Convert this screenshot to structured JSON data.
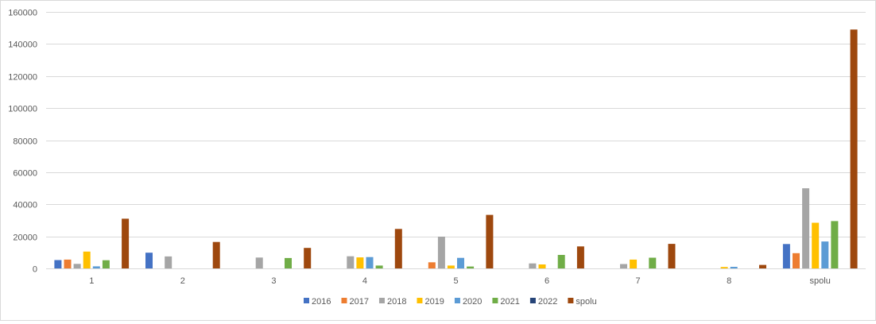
{
  "chart_data": {
    "type": "bar",
    "title": "",
    "xlabel": "",
    "ylabel": "",
    "ylim": [
      0,
      160000
    ],
    "yticks": [
      0,
      20000,
      40000,
      60000,
      80000,
      100000,
      120000,
      140000,
      160000
    ],
    "grid": true,
    "legend_position": "bottom",
    "categories": [
      "1",
      "2",
      "3",
      "4",
      "5",
      "6",
      "7",
      "8",
      "spolu"
    ],
    "series": [
      {
        "name": "2016",
        "color": "#4472c4",
        "values": [
          5200,
          9800,
          0,
          0,
          0,
          0,
          0,
          0,
          15200
        ]
      },
      {
        "name": "2017",
        "color": "#ed7d31",
        "values": [
          5500,
          0,
          0,
          0,
          3800,
          0,
          0,
          0,
          9500
        ]
      },
      {
        "name": "2018",
        "color": "#a5a5a5",
        "values": [
          2800,
          7500,
          6800,
          7600,
          19800,
          3100,
          2700,
          0,
          50000
        ]
      },
      {
        "name": "2019",
        "color": "#ffc000",
        "values": [
          10500,
          0,
          0,
          6900,
          1800,
          2500,
          5500,
          900,
          28500
        ]
      },
      {
        "name": "2020",
        "color": "#5b9bd5",
        "values": [
          1300,
          0,
          0,
          7100,
          6600,
          0,
          0,
          1000,
          16800
        ]
      },
      {
        "name": "2021",
        "color": "#70ad47",
        "values": [
          5100,
          0,
          6500,
          1800,
          1200,
          8400,
          6700,
          0,
          29500
        ]
      },
      {
        "name": "2022",
        "color": "#264478",
        "values": [
          0,
          0,
          0,
          0,
          0,
          0,
          0,
          0,
          0
        ]
      },
      {
        "name": "spolu",
        "color": "#9e480e",
        "values": [
          31000,
          16500,
          12800,
          24600,
          33400,
          13700,
          15300,
          2200,
          149000
        ]
      }
    ]
  }
}
